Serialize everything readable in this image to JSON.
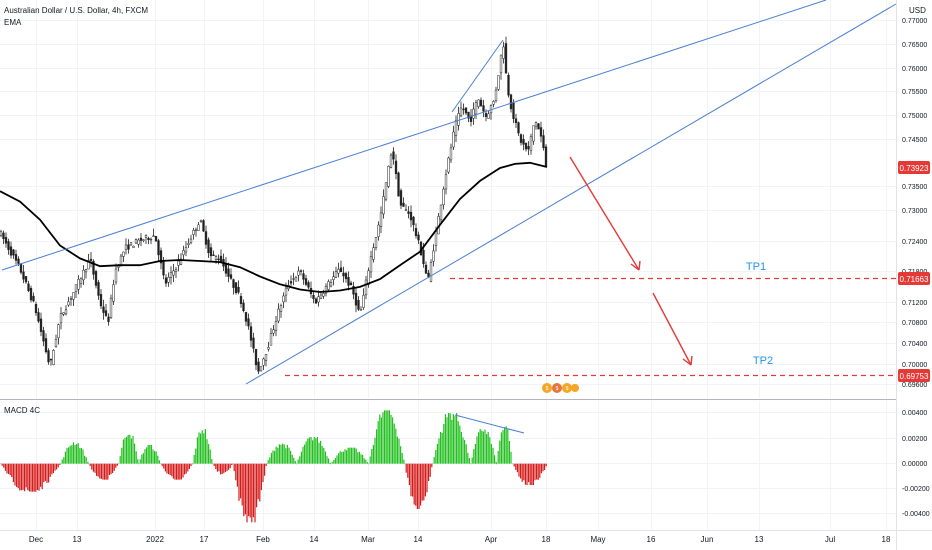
{
  "header": {
    "symbol_line": "Australian Dollar / U.S. Dollar, 4h, FXCM",
    "indicator": "EMA",
    "currency": "USD"
  },
  "macd_label": "MACD 4C",
  "colors": {
    "candle": "#1f1f1f",
    "ema": "#000000",
    "trendline": "#4a7fd4",
    "target_line": "#e53935",
    "arrow": "#e53935",
    "tp_label": "#2196f3",
    "price_tag": "#e53935",
    "macd_pos": "#22c01f",
    "macd_neg": "#d51a1a",
    "grid": "#f0f3fa",
    "axis_text": "#131722"
  },
  "chart_data": [
    {
      "type": "candlestick",
      "title": "Australian Dollar / U.S. Dollar, 4h, FXCM",
      "x_tick_labels": [
        "Dec",
        "13",
        "2022",
        "17",
        "Feb",
        "14",
        "Mar",
        "14",
        "Apr",
        "18",
        "May",
        "16",
        "Jun",
        "13",
        "Jul",
        "18"
      ],
      "y_tick_labels": [
        "0.77000",
        "0.76500",
        "0.76000",
        "0.75500",
        "0.75000",
        "0.74500",
        "0.73500",
        "0.73000",
        "0.72400",
        "0.71800",
        "0.71200",
        "0.70800",
        "0.70400",
        "0.70000",
        "0.69600"
      ],
      "ylim": [
        0.6955,
        0.7725
      ],
      "current_price": "0.73923",
      "targets": [
        {
          "label": "TP1",
          "price": "0.71663"
        },
        {
          "label": "TP2",
          "price": "0.69753"
        }
      ],
      "close_path": [
        [
          0,
          0.7275
        ],
        [
          20,
          0.7205
        ],
        [
          35,
          0.713
        ],
        [
          50,
          0.7015
        ],
        [
          60,
          0.711
        ],
        [
          75,
          0.7165
        ],
        [
          90,
          0.7225
        ],
        [
          100,
          0.714
        ],
        [
          108,
          0.71
        ],
        [
          115,
          0.72
        ],
        [
          125,
          0.7245
        ],
        [
          140,
          0.726
        ],
        [
          155,
          0.727
        ],
        [
          165,
          0.7175
        ],
        [
          178,
          0.7215
        ],
        [
          188,
          0.7255
        ],
        [
          200,
          0.73
        ],
        [
          210,
          0.723
        ],
        [
          220,
          0.7225
        ],
        [
          230,
          0.7185
        ],
        [
          240,
          0.715
        ],
        [
          248,
          0.7095
        ],
        [
          258,
          0.7005
        ],
        [
          268,
          0.7055
        ],
        [
          278,
          0.712
        ],
        [
          288,
          0.7175
        ],
        [
          300,
          0.72
        ],
        [
          315,
          0.714
        ],
        [
          328,
          0.7175
        ],
        [
          340,
          0.7205
        ],
        [
          352,
          0.7165
        ],
        [
          360,
          0.7115
        ],
        [
          370,
          0.722
        ],
        [
          380,
          0.73
        ],
        [
          392,
          0.744
        ],
        [
          400,
          0.733
        ],
        [
          410,
          0.731
        ],
        [
          420,
          0.7245
        ],
        [
          428,
          0.718
        ],
        [
          436,
          0.7275
        ],
        [
          445,
          0.738
        ],
        [
          455,
          0.748
        ],
        [
          462,
          0.752
        ],
        [
          470,
          0.749
        ],
        [
          478,
          0.7535
        ],
        [
          486,
          0.75
        ],
        [
          494,
          0.753
        ],
        [
          500,
          0.76
        ],
        [
          503,
          0.765
        ],
        [
          507,
          0.756
        ],
        [
          512,
          0.751
        ],
        [
          520,
          0.7455
        ],
        [
          528,
          0.743
        ],
        [
          535,
          0.7495
        ],
        [
          542,
          0.7455
        ],
        [
          547,
          0.7392
        ]
      ],
      "ema_path": [
        [
          0,
          0.7355
        ],
        [
          20,
          0.7335
        ],
        [
          40,
          0.73
        ],
        [
          60,
          0.725
        ],
        [
          80,
          0.7225
        ],
        [
          100,
          0.721
        ],
        [
          120,
          0.7212
        ],
        [
          140,
          0.7212
        ],
        [
          160,
          0.722
        ],
        [
          180,
          0.7222
        ],
        [
          200,
          0.722
        ],
        [
          220,
          0.7218
        ],
        [
          240,
          0.7208
        ],
        [
          260,
          0.719
        ],
        [
          280,
          0.7175
        ],
        [
          300,
          0.7165
        ],
        [
          320,
          0.716
        ],
        [
          340,
          0.7163
        ],
        [
          360,
          0.717
        ],
        [
          380,
          0.7185
        ],
        [
          400,
          0.7212
        ],
        [
          420,
          0.7238
        ],
        [
          440,
          0.729
        ],
        [
          460,
          0.734
        ],
        [
          480,
          0.7375
        ],
        [
          500,
          0.74
        ],
        [
          515,
          0.7408
        ],
        [
          530,
          0.741
        ],
        [
          547,
          0.7402
        ]
      ]
    },
    {
      "type": "bar",
      "title": "MACD 4C",
      "y_tick_labels": [
        "0.00400",
        "0.00200",
        "0.00000",
        "-0.00200",
        "-0.00400"
      ],
      "ylim": [
        -0.0046,
        0.0047
      ],
      "segments": [
        {
          "x0": 0,
          "x1": 60,
          "peak": -0.0021
        },
        {
          "x0": 60,
          "x1": 88,
          "peak": 0.0016
        },
        {
          "x0": 88,
          "x1": 118,
          "peak": -0.0012
        },
        {
          "x0": 118,
          "x1": 138,
          "peak": 0.0024
        },
        {
          "x0": 138,
          "x1": 160,
          "peak": 0.0014
        },
        {
          "x0": 160,
          "x1": 192,
          "peak": -0.0012
        },
        {
          "x0": 192,
          "x1": 212,
          "peak": 0.0026
        },
        {
          "x0": 212,
          "x1": 232,
          "peak": -0.0008
        },
        {
          "x0": 232,
          "x1": 266,
          "peak": -0.0044
        },
        {
          "x0": 266,
          "x1": 296,
          "peak": 0.0015
        },
        {
          "x0": 296,
          "x1": 330,
          "peak": 0.002
        },
        {
          "x0": 330,
          "x1": 368,
          "peak": 0.0012
        },
        {
          "x0": 368,
          "x1": 404,
          "peak": 0.004
        },
        {
          "x0": 404,
          "x1": 432,
          "peak": -0.0034
        },
        {
          "x0": 432,
          "x1": 470,
          "peak": 0.0038
        },
        {
          "x0": 470,
          "x1": 496,
          "peak": 0.0026
        },
        {
          "x0": 496,
          "x1": 512,
          "peak": 0.0028
        },
        {
          "x0": 512,
          "x1": 547,
          "peak": -0.0016
        }
      ]
    }
  ]
}
